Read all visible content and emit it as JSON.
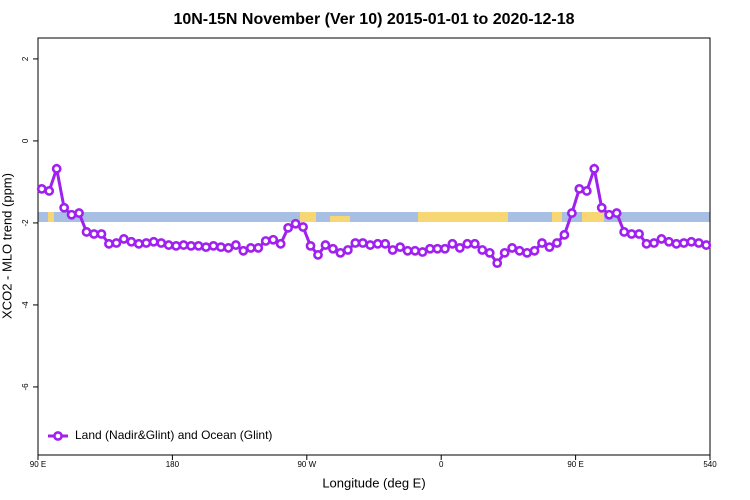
{
  "chart_data": {
    "type": "line",
    "title": "10N-15N November (Ver 10)   2015-01-01 to 2020-12-18",
    "x_label": "Longitude (deg E)",
    "y_label": "XCO2 - MLO trend (ppm)",
    "x": [
      92.5,
      97.5,
      102.5,
      107.5,
      112.5,
      117.5,
      122.5,
      127.5,
      132.5,
      137.5,
      142.5,
      147.5,
      152.5,
      157.5,
      162.5,
      167.5,
      172.5,
      177.5,
      182.5,
      187.5,
      192.5,
      197.5,
      202.5,
      207.5,
      212.5,
      217.5,
      222.5,
      227.5,
      232.5,
      237.5,
      242.5,
      247.5,
      252.5,
      257.5,
      262.5,
      267.5,
      272.5,
      277.5,
      282.5,
      287.5,
      292.5,
      297.5,
      302.5,
      307.5,
      312.5,
      317.5,
      322.5,
      327.5,
      332.5,
      337.5,
      342.5,
      347.5,
      352.5,
      357.5,
      362.5,
      367.5,
      372.5,
      377.5,
      382.5,
      387.5,
      392.5,
      397.5,
      402.5,
      407.5,
      412.5,
      417.5,
      422.5,
      427.5,
      432.5,
      437.5,
      442.5,
      447.5,
      452.5,
      457.5,
      462.5,
      467.5,
      472.5,
      477.5,
      482.5,
      487.5,
      492.5,
      497.5,
      502.5,
      507.5,
      512.5,
      517.5,
      522.5,
      527.5,
      532.5,
      537.5
    ],
    "series": [
      {
        "name": "Land (Nadir&Glint) and Ocean (Glint)",
        "color": "#a020f0",
        "values": [
          -1.17,
          -1.22,
          -0.68,
          -1.63,
          -1.8,
          -1.76,
          -2.22,
          -2.27,
          -2.27,
          -2.51,
          -2.49,
          -2.39,
          -2.46,
          -2.51,
          -2.49,
          -2.46,
          -2.49,
          -2.54,
          -2.56,
          -2.54,
          -2.56,
          -2.56,
          -2.59,
          -2.56,
          -2.59,
          -2.61,
          -2.54,
          -2.68,
          -2.61,
          -2.61,
          -2.44,
          -2.41,
          -2.51,
          -2.12,
          -2.02,
          -2.1,
          -2.56,
          -2.78,
          -2.54,
          -2.63,
          -2.73,
          -2.66,
          -2.49,
          -2.49,
          -2.54,
          -2.51,
          -2.51,
          -2.66,
          -2.59,
          -2.68,
          -2.68,
          -2.71,
          -2.63,
          -2.63,
          -2.63,
          -2.51,
          -2.61,
          -2.51,
          -2.51,
          -2.66,
          -2.73,
          -2.98,
          -2.73,
          -2.61,
          -2.68,
          -2.73,
          -2.68,
          -2.49,
          -2.59,
          -2.49,
          -2.29,
          -1.76,
          -1.17,
          -1.22,
          -0.68,
          -1.63,
          -1.8,
          -1.76,
          -2.22,
          -2.27,
          -2.27,
          -2.51,
          -2.49,
          -2.39,
          -2.46,
          -2.51,
          -2.49,
          -2.46,
          -2.49,
          -2.54
        ]
      }
    ],
    "xlim": [
      90,
      540
    ],
    "xticks": [
      {
        "value": 90,
        "label": "90 E"
      },
      180,
      {
        "value": 270,
        "label": "90 W"
      },
      {
        "value": 360,
        "label": "0"
      },
      {
        "value": 450,
        "label": "90 E"
      },
      540
    ],
    "ylim": [
      -7.66,
      2.51
    ],
    "yticks": [
      -6,
      -4,
      -2,
      0,
      2
    ],
    "legend": "bottom-left"
  }
}
